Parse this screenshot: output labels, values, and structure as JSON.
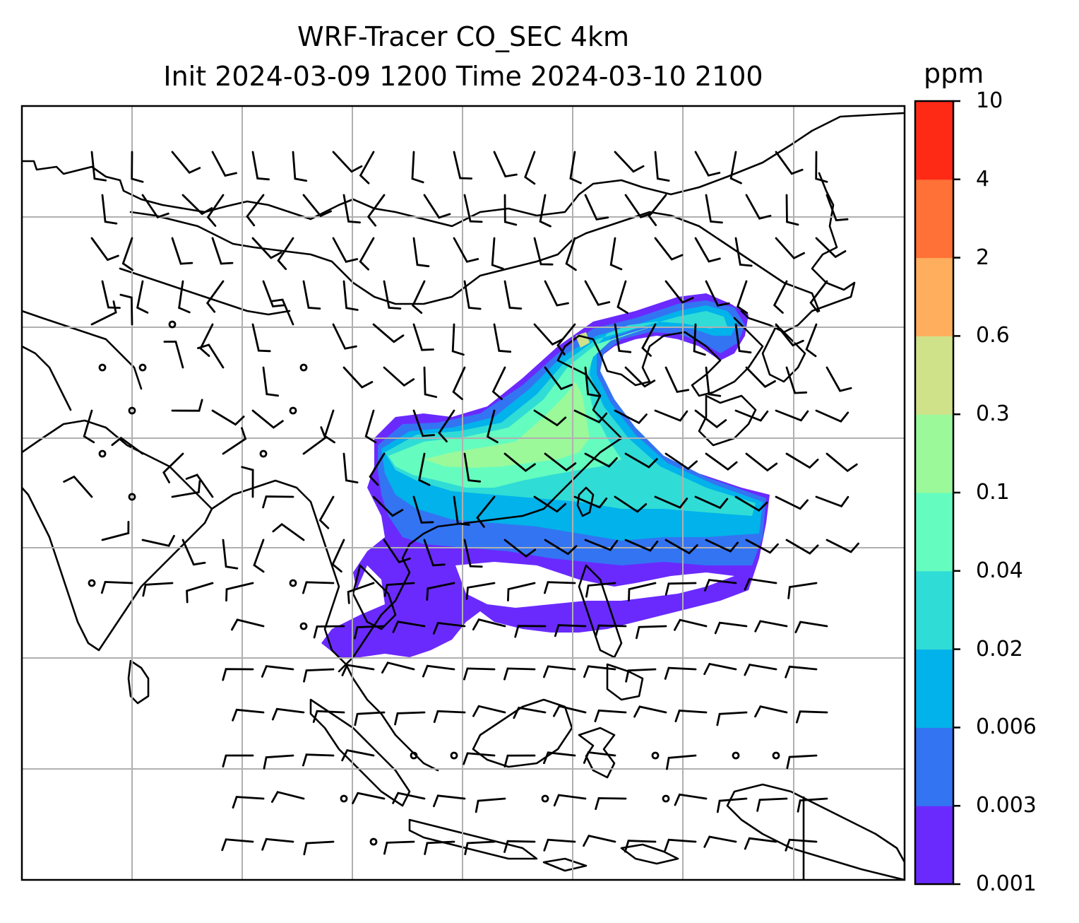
{
  "title": {
    "line1": "WRF-Tracer CO_SEC 4km",
    "line2": "Init 2024-03-09 1200 Time 2024-03-10 2100"
  },
  "colorbar": {
    "unit": "ppm",
    "levels": [
      "0.001",
      "0.003",
      "0.006",
      "0.02",
      "0.04",
      "0.1",
      "0.3",
      "0.6",
      "2",
      "4",
      "10"
    ],
    "colors": [
      "#6a2afe",
      "#3374f3",
      "#02b2ea",
      "#30dcd6",
      "#64fdbf",
      "#9bf99a",
      "#cfe28a",
      "#ffae5e",
      "#ff7136",
      "#ff2a16"
    ]
  },
  "map": {
    "field": "CO_SEC tracer concentration",
    "overlay": "wind barbs",
    "gridlines": true,
    "line_color": "#000000",
    "grid_color": "#b0b0b0"
  }
}
